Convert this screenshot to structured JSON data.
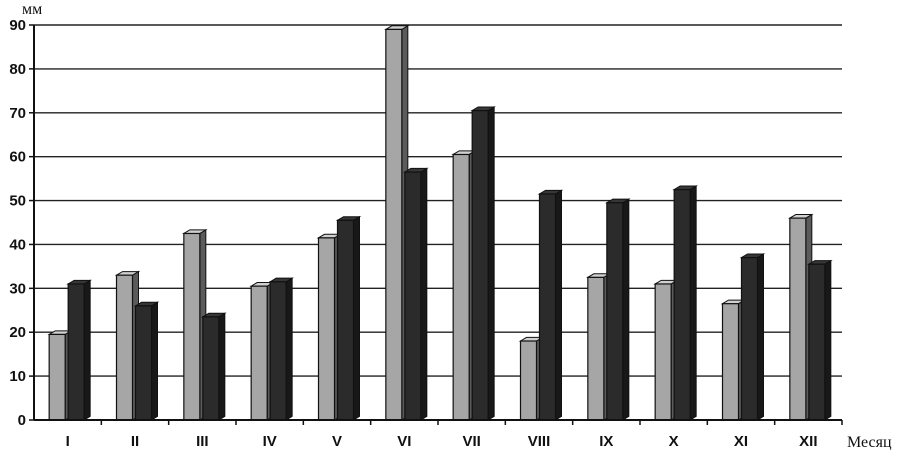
{
  "chart_data": {
    "type": "bar",
    "ylabel": "мм",
    "xlabel": "Месяц",
    "ylim": [
      0,
      90
    ],
    "yticks": [
      0,
      10,
      20,
      30,
      40,
      50,
      60,
      70,
      80,
      90
    ],
    "grid": true,
    "categories": [
      "I",
      "II",
      "III",
      "IV",
      "V",
      "VI",
      "VII",
      "VIII",
      "IX",
      "X",
      "XI",
      "XII"
    ],
    "series": [
      {
        "values": [
          19.5,
          33,
          42.5,
          30.5,
          41.5,
          89,
          60.5,
          18,
          32.5,
          31,
          26.5,
          46
        ],
        "color": "#a6a6a6"
      },
      {
        "values": [
          31,
          26,
          23.5,
          31.5,
          45.5,
          56.5,
          70.5,
          51.5,
          49.5,
          52.5,
          37,
          35.5
        ],
        "color": "#2b2b2b"
      }
    ]
  }
}
